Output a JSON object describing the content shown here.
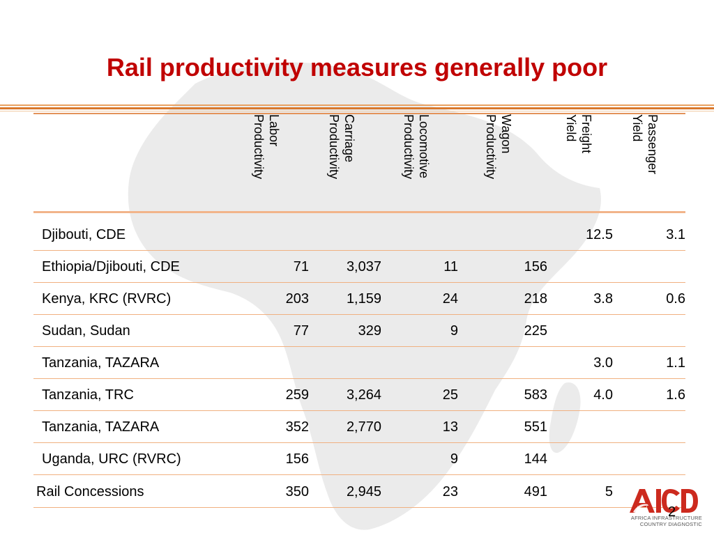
{
  "slide": {
    "title": "Rail productivity measures generally poor",
    "page_number": "2"
  },
  "table": {
    "columns": [
      {
        "key": "labor",
        "lines": [
          "Labor",
          "Productivity"
        ]
      },
      {
        "key": "carriage",
        "lines": [
          "Carriage",
          "Productivity"
        ]
      },
      {
        "key": "locomotive",
        "lines": [
          "Locomotive",
          "Productivity"
        ]
      },
      {
        "key": "wagon",
        "lines": [
          "Wagon",
          "Productivity"
        ]
      },
      {
        "key": "freight",
        "lines": [
          "Freight",
          "Yield"
        ]
      },
      {
        "key": "passenger",
        "lines": [
          "Passenger",
          "Yield"
        ]
      }
    ],
    "rows": [
      {
        "name": "Djibouti, CDE",
        "values": [
          "",
          "",
          "",
          "",
          "12.5",
          "3.1"
        ]
      },
      {
        "name": "Ethiopia/Djibouti, CDE",
        "values": [
          "71",
          "3,037",
          "11",
          "156",
          "",
          ""
        ]
      },
      {
        "name": "Kenya, KRC (RVRC)",
        "values": [
          "203",
          "1,159",
          "24",
          "218",
          "3.8",
          "0.6"
        ]
      },
      {
        "name": "Sudan, Sudan",
        "values": [
          "77",
          "329",
          "9",
          "225",
          "",
          ""
        ]
      },
      {
        "name": "Tanzania, TAZARA",
        "values": [
          "",
          "",
          "",
          "",
          "3.0",
          "1.1"
        ]
      },
      {
        "name": "Tanzania, TRC",
        "values": [
          "259",
          "3,264",
          "25",
          "583",
          "4.0",
          "1.6"
        ]
      },
      {
        "name": "Tanzania, TAZARA",
        "values": [
          "352",
          "2,770",
          "13",
          "551",
          "",
          ""
        ]
      },
      {
        "name": "Uganda, URC (RVRC)",
        "values": [
          "156",
          "",
          "9",
          "144",
          "",
          ""
        ]
      }
    ],
    "summary": {
      "name": "Rail Concessions",
      "values": [
        "350",
        "2,945",
        "23",
        "491",
        "5",
        ""
      ]
    }
  },
  "logo": {
    "mark": "AICD",
    "line1": "AFRICA INFRASTRUCTURE",
    "line2": "COUNTRY DIAGNOSTIC"
  },
  "colors": {
    "title": "#c00000",
    "rule": "#d9782c",
    "row_separator": "#f0b080",
    "logo_red": "#cc2a1e",
    "africa_map": "#e9e9e9"
  }
}
